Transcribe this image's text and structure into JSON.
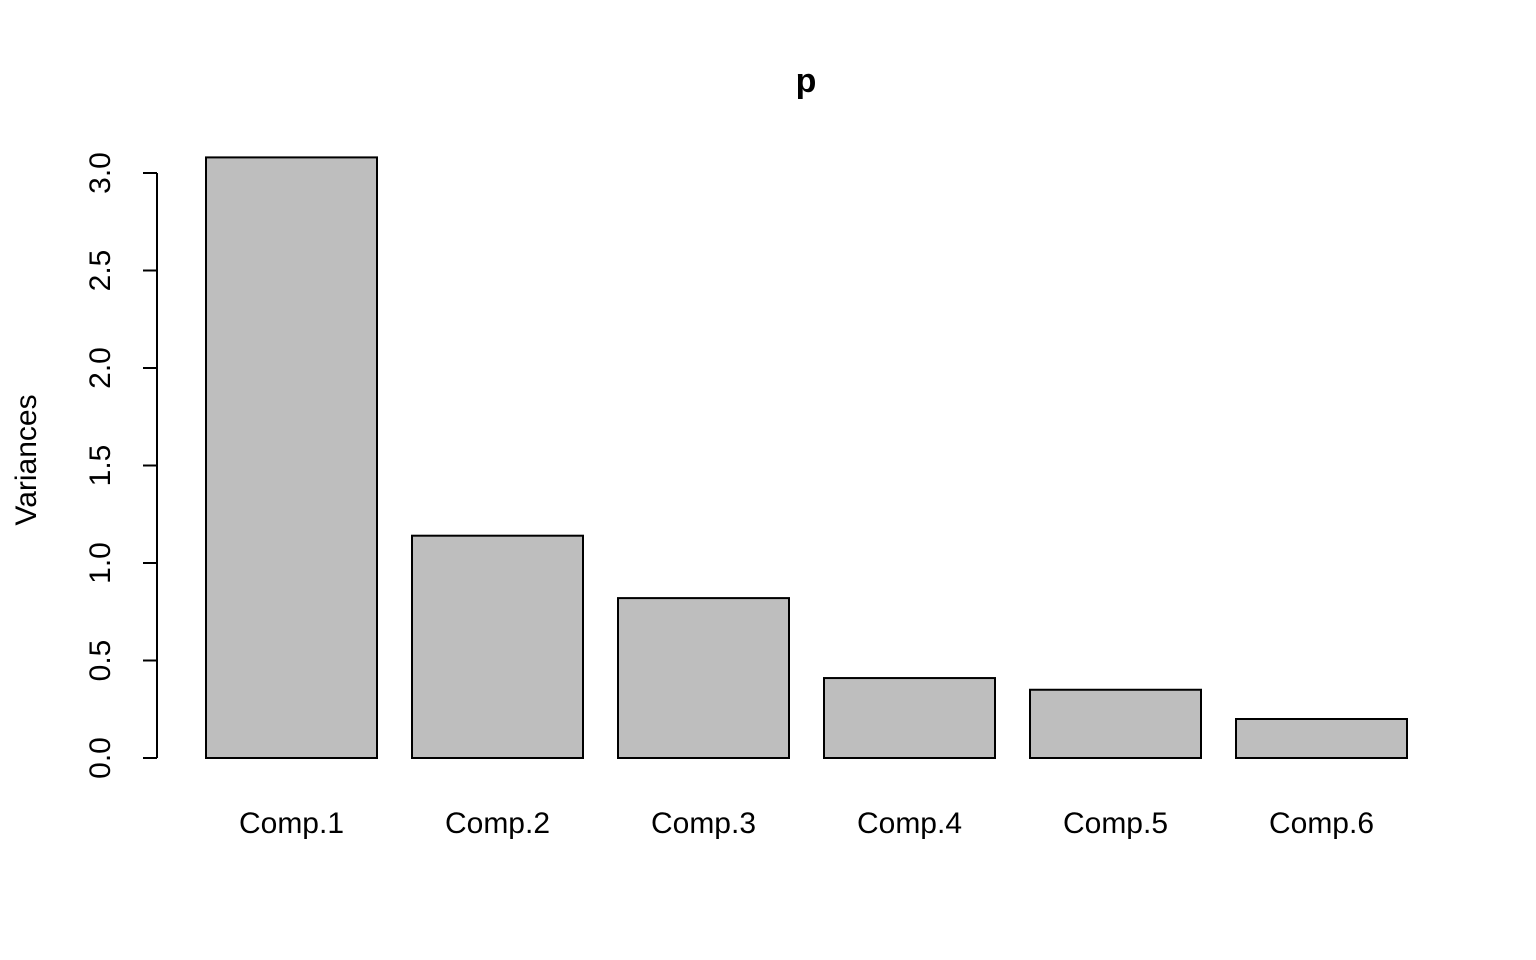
{
  "chart_data": {
    "type": "bar",
    "title": "p",
    "xlabel": "",
    "ylabel": "Variances",
    "categories": [
      "Comp.1",
      "Comp.2",
      "Comp.3",
      "Comp.4",
      "Comp.5",
      "Comp.6"
    ],
    "values": [
      3.08,
      1.14,
      0.82,
      0.41,
      0.35,
      0.2
    ],
    "ylim": [
      0,
      3.0
    ],
    "yticks": [
      "0.0",
      "0.5",
      "1.0",
      "1.5",
      "2.0",
      "2.5",
      "3.0"
    ],
    "grid": false,
    "colors": {
      "bar_fill": "#bebebe",
      "bar_stroke": "#000000",
      "background": "#ffffff"
    }
  }
}
